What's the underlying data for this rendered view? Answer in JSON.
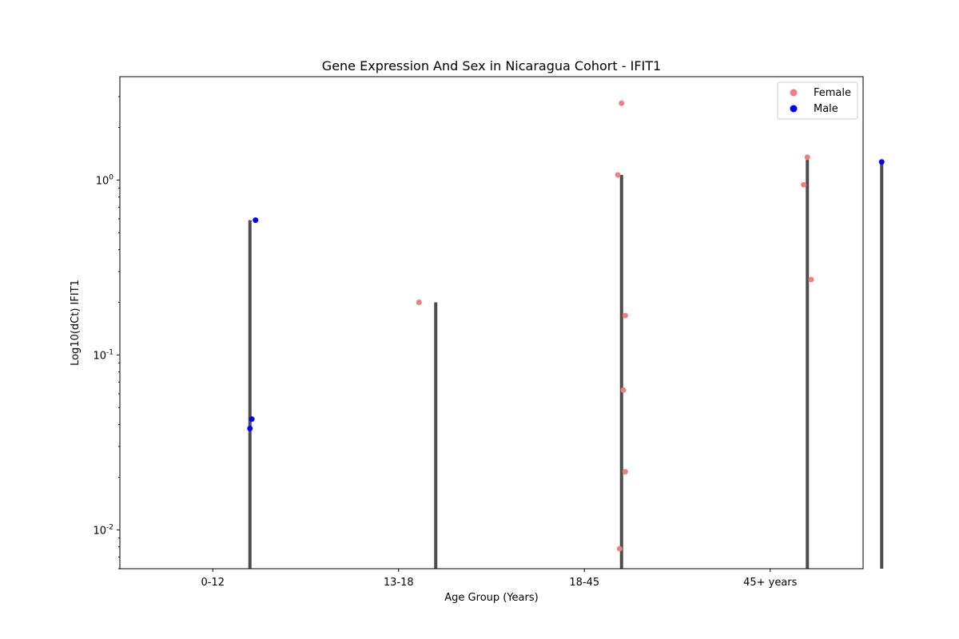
{
  "chart_data": {
    "type": "scatter",
    "title": "Gene Expression And Sex in Nicaragua Cohort - IFIT1",
    "xlabel": "Age Group (Years)",
    "ylabel": "Log10(dCt) IFIT1",
    "yscale": "log",
    "ylim": [
      0.006,
      3.9
    ],
    "yticks": [
      {
        "value": 0.01,
        "label": "10^-2"
      },
      {
        "value": 0.1,
        "label": "10^-1"
      },
      {
        "value": 1,
        "label": "10^0"
      }
    ],
    "categories": [
      "0-12",
      "13-18",
      "18-45",
      "45+ years"
    ],
    "legend": {
      "placement": "top-right",
      "entries": [
        "Female",
        "Male"
      ]
    },
    "colors": {
      "Female": "#f08080",
      "Male": "#0000ff",
      "bar": "#4d4d4d"
    },
    "bars": [
      {
        "category": "0-12",
        "sex": "Male",
        "value": 0.59
      },
      {
        "category": "13-18",
        "sex": "Female",
        "value": 0.2
      },
      {
        "category": "18-45",
        "sex": "Female",
        "value": 1.07
      },
      {
        "category": "45+ years",
        "sex": "Female",
        "value": 1.35
      },
      {
        "category": "45+ years",
        "sex": "Male",
        "value": 1.27
      }
    ],
    "series": [
      {
        "name": "Female",
        "points": [
          {
            "category": "13-18",
            "y": 0.2
          },
          {
            "category": "18-45",
            "y": 2.75
          },
          {
            "category": "18-45",
            "y": 1.07
          },
          {
            "category": "18-45",
            "y": 0.168
          },
          {
            "category": "18-45",
            "y": 0.063
          },
          {
            "category": "18-45",
            "y": 0.0215
          },
          {
            "category": "18-45",
            "y": 0.0078
          },
          {
            "category": "45+ years",
            "y": 1.35
          },
          {
            "category": "45+ years",
            "y": 0.94
          },
          {
            "category": "45+ years",
            "y": 0.27
          }
        ]
      },
      {
        "name": "Male",
        "points": [
          {
            "category": "0-12",
            "y": 0.59
          },
          {
            "category": "0-12",
            "y": 0.043
          },
          {
            "category": "0-12",
            "y": 0.038
          },
          {
            "category": "45+ years",
            "y": 1.27
          }
        ]
      }
    ]
  }
}
